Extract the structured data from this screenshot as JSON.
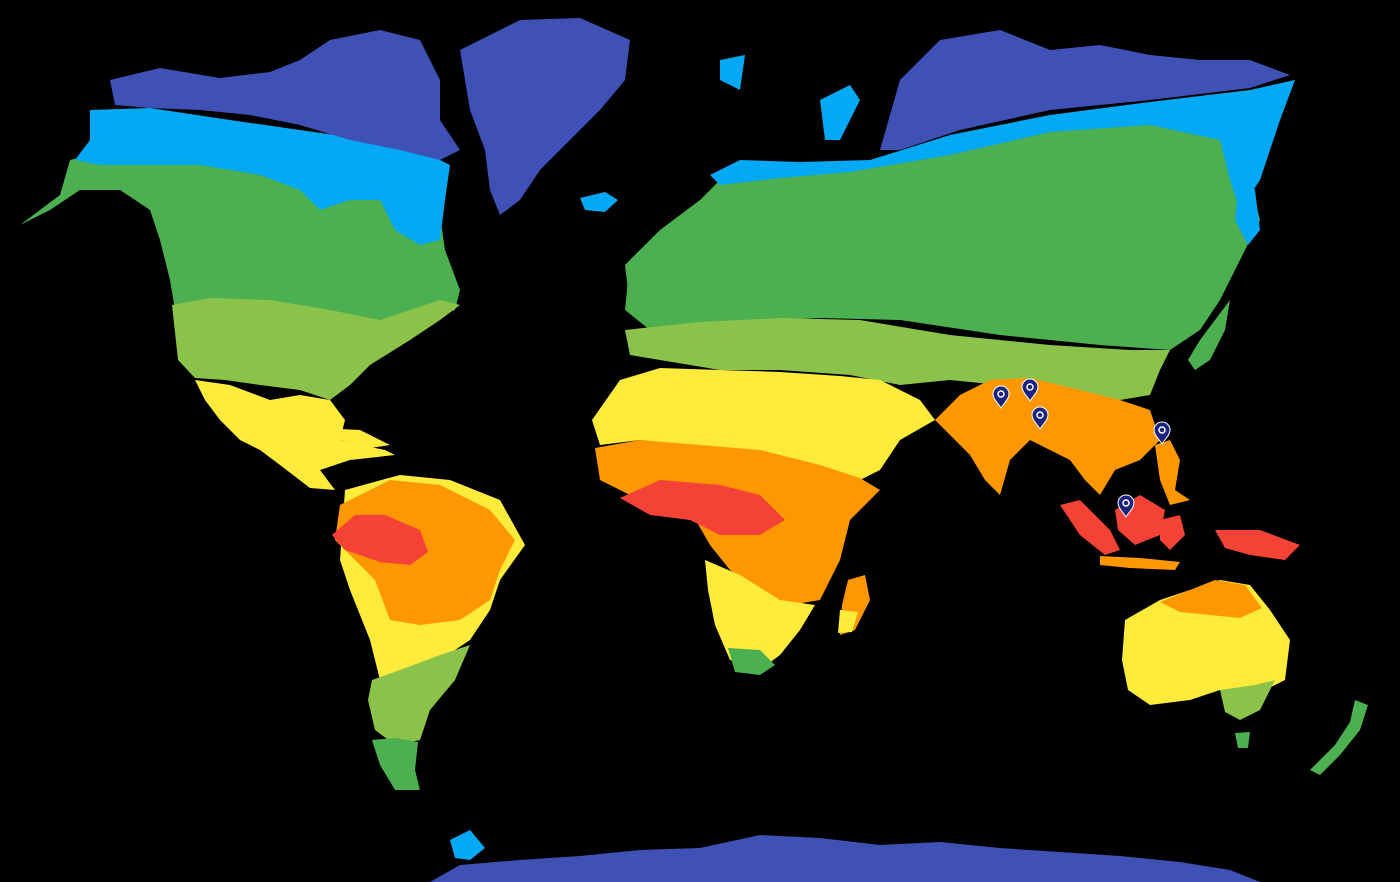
{
  "map": {
    "background": "#000000",
    "zone_colors": {
      "polar": "#3F51B5",
      "subpolar": "#03A9F4",
      "cool_temperate": "#4CAF50",
      "warm_temperate": "#8BC34A",
      "subtropical": "#FFEB3B",
      "tropical": "#FF9800",
      "equatorial": "#F44336"
    },
    "marker_color": "#1A237E",
    "marker_icon": "map-pin-icon",
    "marker_count": 5
  }
}
